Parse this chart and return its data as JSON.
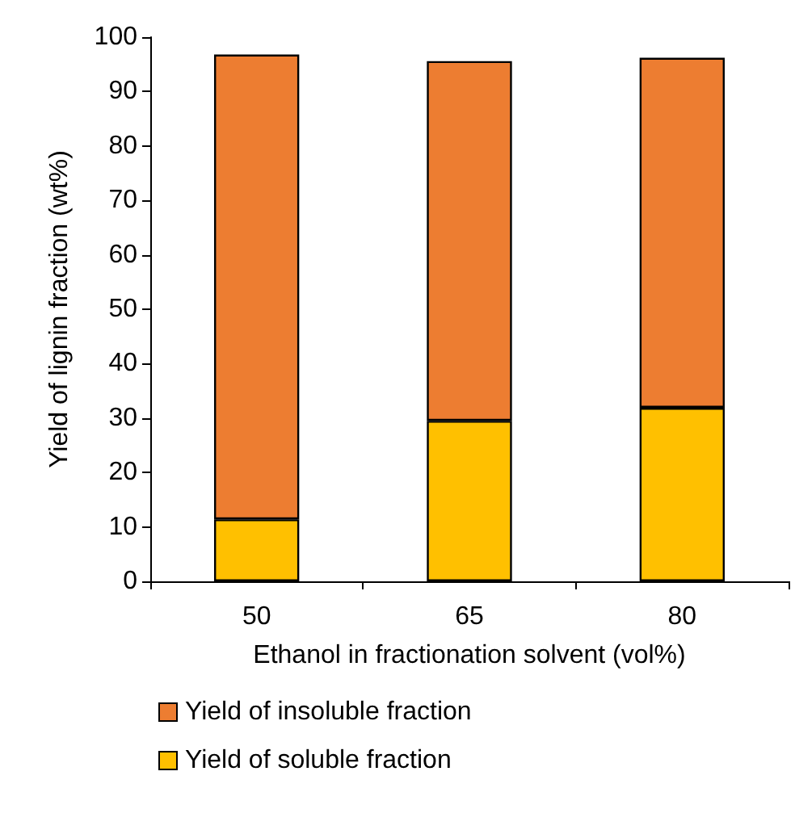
{
  "chart_data": {
    "type": "bar",
    "stacked": true,
    "xlabel": "Ethanol in fractionation solvent (vol%)",
    "ylabel": "Yield of lignin fraction (wt%)",
    "categories": [
      "50",
      "65",
      "80"
    ],
    "series": [
      {
        "name": "Yield of soluble fraction",
        "color": "#ffc000",
        "values": [
          11.4,
          29.5,
          31.9
        ]
      },
      {
        "name": "Yield of insoluble fraction",
        "color": "#ed7d31",
        "values": [
          85.4,
          66.1,
          64.3
        ]
      }
    ],
    "ylim": [
      0,
      100
    ],
    "yticks": [
      0,
      10,
      20,
      30,
      40,
      50,
      60,
      70,
      80,
      90,
      100
    ],
    "grid": false,
    "legend": "bottom"
  }
}
